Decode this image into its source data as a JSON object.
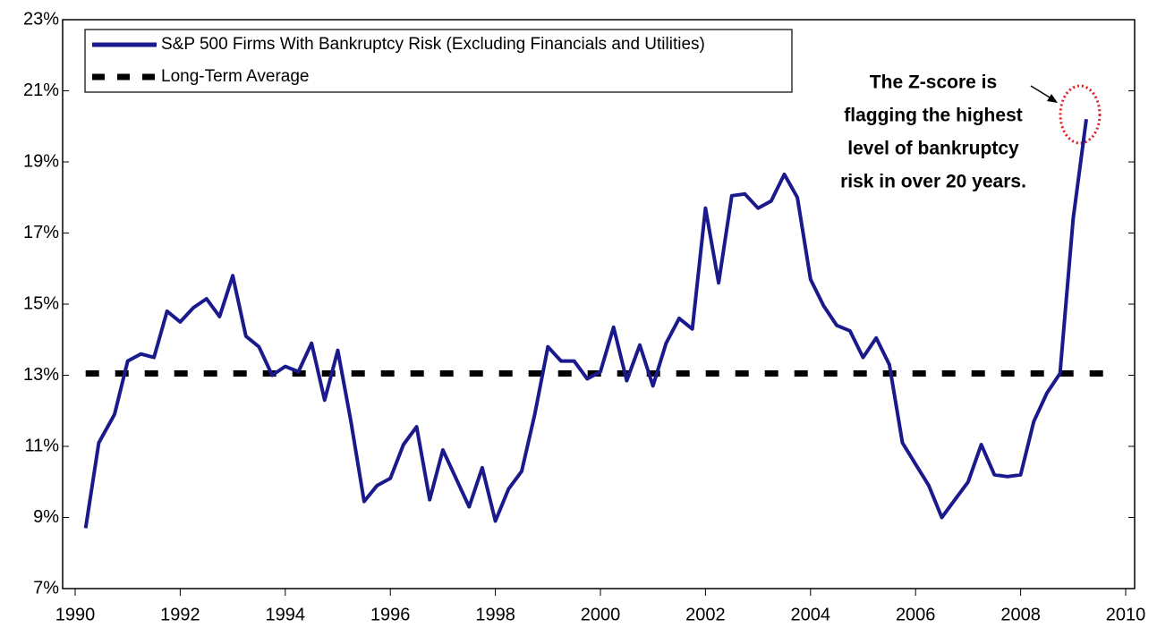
{
  "chart_data": {
    "type": "line",
    "xlim": [
      1990,
      2010
    ],
    "xticks": [
      1990,
      1992,
      1994,
      1996,
      1998,
      2000,
      2002,
      2004,
      2006,
      2008,
      2010
    ],
    "ylim": [
      7,
      23
    ],
    "yticks": [
      {
        "value": 7,
        "label": "7%"
      },
      {
        "value": 9,
        "label": "9%"
      },
      {
        "value": 11,
        "label": "11%"
      },
      {
        "value": 13,
        "label": "13%"
      },
      {
        "value": 15,
        "label": "15%"
      },
      {
        "value": 17,
        "label": "17%"
      },
      {
        "value": 19,
        "label": "19%"
      },
      {
        "value": 21,
        "label": "21%"
      },
      {
        "value": 23,
        "label": "23%"
      }
    ],
    "legend": "top-left",
    "series": [
      {
        "name": "S&P 500 Firms With Bankruptcy Risk (Excluding Financials and Utilities)",
        "color": "#1a1a8c",
        "dash": false,
        "x": [
          1990.2,
          1990.45,
          1990.75,
          1991.0,
          1991.25,
          1991.5,
          1991.75,
          1992.0,
          1992.25,
          1992.5,
          1992.75,
          1993.0,
          1993.25,
          1993.5,
          1993.75,
          1994.0,
          1994.25,
          1994.5,
          1994.75,
          1995.0,
          1995.25,
          1995.5,
          1995.75,
          1996.0,
          1996.25,
          1996.5,
          1996.75,
          1997.0,
          1997.25,
          1997.5,
          1997.75,
          1998.0,
          1998.25,
          1998.5,
          1998.75,
          1999.0,
          1999.25,
          1999.5,
          1999.75,
          2000.0,
          2000.25,
          2000.5,
          2000.75,
          2001.0,
          2001.25,
          2001.5,
          2001.75,
          2002.0,
          2002.25,
          2002.5,
          2002.75,
          2003.0,
          2003.25,
          2003.5,
          2003.75,
          2004.0,
          2004.25,
          2004.5,
          2004.75,
          2005.0,
          2005.25,
          2005.5,
          2005.75,
          2006.0,
          2006.25,
          2006.5,
          2006.75,
          2007.0,
          2007.25,
          2007.5,
          2007.75,
          2008.0,
          2008.25,
          2008.5,
          2008.75,
          2009.0,
          2009.25
        ],
        "values": [
          8.7,
          11.1,
          11.9,
          13.4,
          13.6,
          13.5,
          14.8,
          14.5,
          14.9,
          15.15,
          14.65,
          15.8,
          14.1,
          13.8,
          13.0,
          13.25,
          13.1,
          13.9,
          12.3,
          13.7,
          11.7,
          9.45,
          9.9,
          10.1,
          11.05,
          11.55,
          9.5,
          10.9,
          10.1,
          9.3,
          10.4,
          8.9,
          9.8,
          10.3,
          11.9,
          13.8,
          13.4,
          13.4,
          12.9,
          13.1,
          14.35,
          12.85,
          13.85,
          12.7,
          13.9,
          14.6,
          14.3,
          17.7,
          15.6,
          18.05,
          18.1,
          17.7,
          17.9,
          18.65,
          18.0,
          15.7,
          14.95,
          14.4,
          14.25,
          13.5,
          14.05,
          13.3,
          11.1,
          10.5,
          9.9,
          9.0,
          9.5,
          10.0,
          11.05,
          10.2,
          10.15,
          10.2,
          11.7,
          12.5,
          13.05,
          17.4,
          20.2
        ]
      },
      {
        "name": "Long-Term Average",
        "color": "#000000",
        "dash": true,
        "x": [
          1990.2,
          2009.8
        ],
        "values": [
          13.05,
          13.05
        ]
      }
    ],
    "annotation": [
      "The Z-score is",
      "flagging the highest",
      "level of bankruptcy",
      "risk in over 20 years."
    ]
  }
}
